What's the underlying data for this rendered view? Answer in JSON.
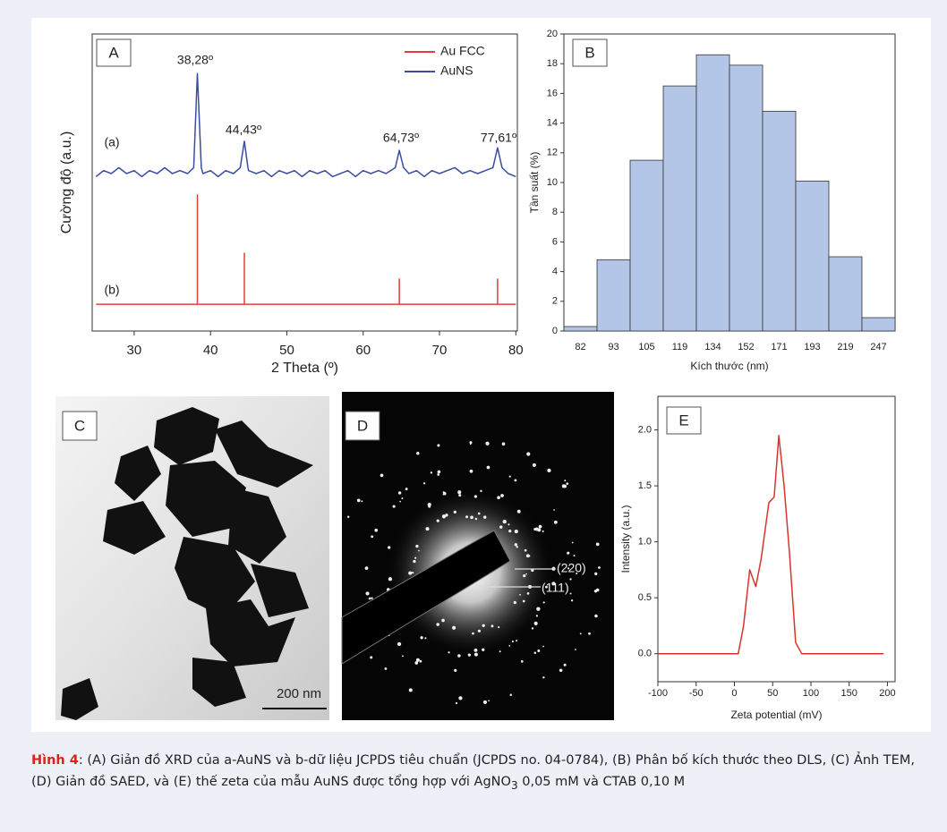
{
  "chart_data": [
    {
      "type": "line",
      "panel": "A",
      "xlabel": "2 Theta (º)",
      "ylabel": "Cường độ (a.u.)",
      "xlim": [
        24.5,
        80.2
      ],
      "xticks": [
        30,
        40,
        50,
        60,
        70,
        80
      ],
      "ylim": [
        0,
        100
      ],
      "series": [
        {
          "name": "Au FCC",
          "color": "#e0403a",
          "x": [
            25,
            38.28,
            38.28,
            38.28,
            44.43,
            44.43,
            44.43,
            64.73,
            64.73,
            64.73,
            77.61,
            77.61,
            77.61,
            80
          ],
          "values": [
            9,
            9,
            45.8,
            9,
            9,
            26.2,
            9,
            9,
            17.5,
            9,
            9,
            17.5,
            9,
            9
          ]
        },
        {
          "name": "AuNS",
          "color": "#3a4ea0",
          "x": [
            25,
            26,
            27,
            28,
            29,
            30,
            31,
            32,
            33,
            34,
            35,
            36,
            37,
            37.8,
            38.28,
            38.8,
            39,
            40,
            41,
            42,
            43,
            43.9,
            44.43,
            44.9,
            45,
            46,
            47,
            48,
            49,
            50,
            51,
            52,
            53,
            54,
            55,
            56,
            57,
            58,
            59,
            60,
            61,
            62,
            63,
            64.2,
            64.73,
            65.3,
            66,
            67,
            68,
            69,
            70,
            71,
            72,
            73,
            74,
            75,
            76,
            77,
            77.61,
            78.2,
            79,
            80
          ],
          "values": [
            52,
            54,
            53,
            55,
            53,
            54,
            52,
            54,
            53,
            55,
            53,
            54,
            53,
            55,
            86.7,
            55,
            53,
            54,
            52,
            54,
            53,
            55,
            63.9,
            55,
            54,
            53,
            54,
            52,
            54,
            53,
            54,
            52,
            54,
            53,
            54,
            52,
            53,
            54,
            52,
            54,
            53,
            54,
            53,
            55,
            60.8,
            55,
            53,
            54,
            52,
            54,
            53,
            54,
            55,
            53,
            54,
            53,
            54,
            55,
            61.7,
            55,
            53,
            52
          ]
        }
      ],
      "annotations": [
        "38,28º",
        "44,43º",
        "64,73º",
        "77,61º",
        "(a)",
        "(b)"
      ]
    },
    {
      "type": "bar",
      "panel": "B",
      "xlabel": "Kích thước  (nm)",
      "ylabel": "Tần suất (%)",
      "categories": [
        "82",
        "93",
        "105",
        "119",
        "134",
        "152",
        "171",
        "193",
        "219",
        "247"
      ],
      "values": [
        0.3,
        4.8,
        11.5,
        16.5,
        18.6,
        17.9,
        14.8,
        10.1,
        5.0,
        0.9
      ],
      "color": "#b3c6e7",
      "ylim": [
        0,
        20
      ],
      "yticks": [
        0,
        2,
        4,
        6,
        8,
        10,
        12,
        14,
        16,
        18,
        20
      ]
    },
    {
      "type": "line",
      "panel": "E",
      "xlabel": "Zeta potential (mV)",
      "ylabel": "Intensity (a.u.)",
      "xlim": [
        -100,
        210
      ],
      "xticks": [
        -100,
        -50,
        0,
        50,
        100,
        150,
        200
      ],
      "ylim": [
        -0.25,
        2.3
      ],
      "yticks": [
        {
          "value": 0,
          "label": "0.0"
        },
        {
          "value": 0.5,
          "label": "0.5"
        },
        {
          "value": 1,
          "label": "1.0"
        },
        {
          "value": 1.5,
          "label": "1.5"
        },
        {
          "value": 2,
          "label": "2.0"
        }
      ],
      "series": [
        {
          "color": "#d9342b",
          "x": [
            -100,
            5,
            12,
            20,
            28,
            35,
            45,
            52,
            58,
            65,
            72,
            80,
            88,
            195
          ],
          "values": [
            0,
            0,
            0.25,
            0.75,
            0.6,
            0.85,
            1.35,
            1.4,
            1.95,
            1.5,
            0.9,
            0.1,
            0,
            0
          ]
        }
      ]
    }
  ],
  "images": [
    {
      "label": "C",
      "scale_bar": "200 nm"
    },
    {
      "label": "D",
      "annotations": [
        "(220)",
        "(111)"
      ]
    }
  ],
  "caption": {
    "label": "Hình 4",
    "text": ": (A) Giản đồ XRD của a-AuNS và b-dữ liệu JCPDS tiêu chuẩn (JCPDS no. 04-0784), (B) Phân bố kích thước theo DLS, (C) Ảnh TEM, (D) Giản đồ SAED, và (E) thế zeta của mẫu AuNS được tổng hợp với AgNO",
    "subscript": "3",
    "text_end": " 0,05 mM và CTAB 0,10 M"
  }
}
